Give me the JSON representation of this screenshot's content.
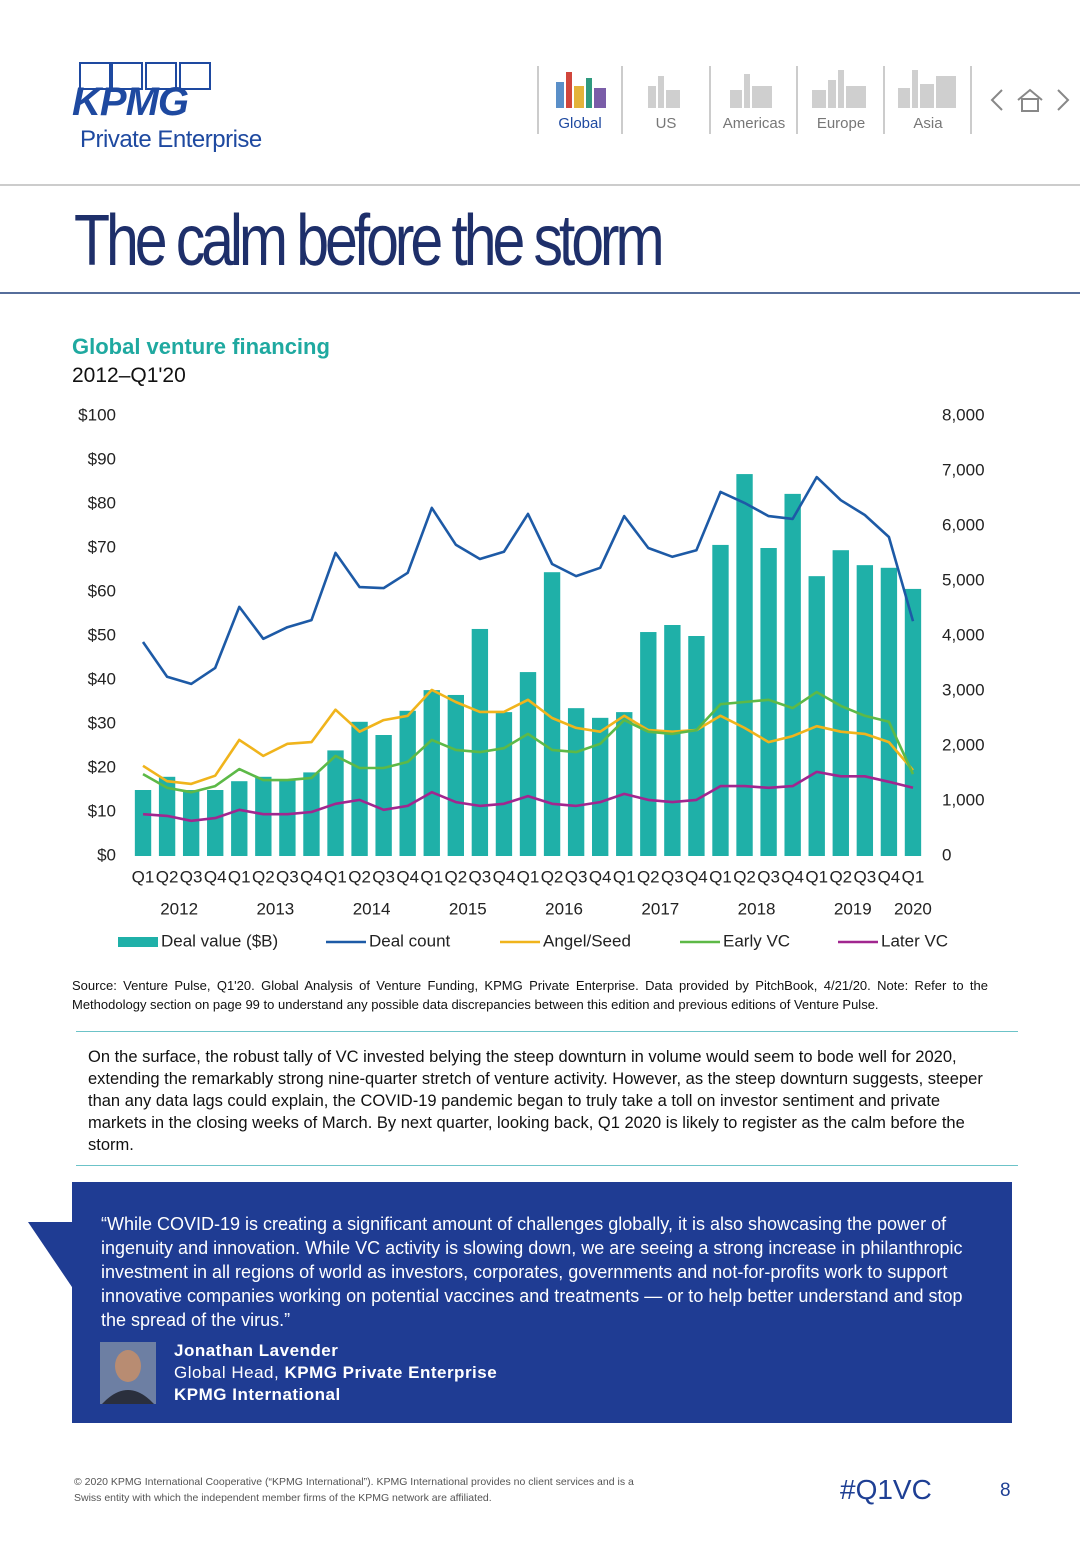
{
  "header": {
    "logo": "KPMG",
    "subtitle": "Private Enterprise",
    "nav": [
      "Global",
      "US",
      "Americas",
      "Europe",
      "Asia"
    ]
  },
  "page_title": "The calm before the storm",
  "chart_data": {
    "type": "bar",
    "title": "Global venture financing",
    "subtitle": "2012–Q1'20",
    "categories": [
      "Q1",
      "Q2",
      "Q3",
      "Q4",
      "Q1",
      "Q2",
      "Q3",
      "Q4",
      "Q1",
      "Q2",
      "Q3",
      "Q4",
      "Q1",
      "Q2",
      "Q3",
      "Q4",
      "Q1",
      "Q2",
      "Q3",
      "Q4",
      "Q1",
      "Q2",
      "Q3",
      "Q4",
      "Q1",
      "Q2",
      "Q3",
      "Q4",
      "Q1",
      "Q2",
      "Q3",
      "Q4",
      "Q1"
    ],
    "year_labels": [
      "2012",
      "2013",
      "2014",
      "2015",
      "2016",
      "2017",
      "2018",
      "2019",
      "2020"
    ],
    "ylim": [
      0,
      100
    ],
    "yticks": [
      {
        "value": 0,
        "label": "$0"
      },
      {
        "value": 10,
        "label": "$10"
      },
      {
        "value": 20,
        "label": "$20"
      },
      {
        "value": 30,
        "label": "$30"
      },
      {
        "value": 40,
        "label": "$40"
      },
      {
        "value": 50,
        "label": "$50"
      },
      {
        "value": 60,
        "label": "$60"
      },
      {
        "value": 70,
        "label": "$70"
      },
      {
        "value": 80,
        "label": "$80"
      },
      {
        "value": 90,
        "label": "$90"
      },
      {
        "value": 100,
        "label": "$100"
      }
    ],
    "y2lim": [
      0,
      8000
    ],
    "y2ticks": [
      0,
      {
        "value": 1000,
        "label": "1,000"
      },
      {
        "value": 2000,
        "label": "2,000"
      },
      {
        "value": 3000,
        "label": "3,000"
      },
      {
        "value": 4000,
        "label": "4,000"
      },
      {
        "value": 5000,
        "label": "5,000"
      },
      {
        "value": 6000,
        "label": "6,000"
      },
      {
        "value": 7000,
        "label": "7,000"
      },
      {
        "value": 8000,
        "label": "8,000"
      }
    ],
    "grid": false,
    "series": [
      {
        "name": "Deal value ($B)",
        "type": "bar",
        "axis": "y",
        "color": "#1fb0a8",
        "values": [
          15,
          18,
          15,
          15,
          17,
          18,
          17.5,
          19,
          24,
          30.5,
          27.5,
          33,
          37.7,
          36.6,
          51.6,
          32.7,
          41.8,
          64.5,
          33.6,
          31.4,
          32.7,
          50.9,
          52.5,
          50,
          70.7,
          86.8,
          70,
          82.3,
          63.6,
          69.5,
          66.1,
          65.5,
          60.7
        ]
      },
      {
        "name": "Deal count",
        "type": "line",
        "axis": "y2",
        "color": "#1d5aa6",
        "values": [
          3890,
          3260,
          3130,
          3420,
          4530,
          3950,
          4160,
          4290,
          5510,
          4890,
          4870,
          5150,
          6330,
          5660,
          5400,
          5530,
          6220,
          5310,
          5090,
          5240,
          6180,
          5600,
          5440,
          5560,
          6620,
          6420,
          6180,
          6130,
          6890,
          6470,
          6200,
          5800,
          4270
        ]
      },
      {
        "name": "Angel/Seed",
        "type": "line",
        "axis": "y2",
        "color": "#f0b41c",
        "values": [
          1640,
          1360,
          1310,
          1460,
          2110,
          1820,
          2040,
          2070,
          2660,
          2260,
          2470,
          2550,
          3020,
          2800,
          2620,
          2620,
          2840,
          2510,
          2330,
          2260,
          2550,
          2290,
          2260,
          2290,
          2550,
          2330,
          2070,
          2180,
          2360,
          2260,
          2220,
          2070,
          1560
        ]
      },
      {
        "name": "Early VC",
        "type": "line",
        "axis": "y2",
        "color": "#5db947",
        "values": [
          1490,
          1240,
          1160,
          1270,
          1580,
          1380,
          1380,
          1420,
          1820,
          1600,
          1600,
          1710,
          2110,
          1930,
          1890,
          1960,
          2220,
          1930,
          1890,
          2040,
          2470,
          2260,
          2220,
          2290,
          2760,
          2800,
          2840,
          2690,
          2980,
          2730,
          2550,
          2440,
          1490
        ]
      },
      {
        "name": "Later VC",
        "type": "line",
        "axis": "y2",
        "color": "#a1268f",
        "values": [
          760,
          730,
          640,
          690,
          840,
          760,
          760,
          800,
          950,
          1020,
          840,
          910,
          1160,
          980,
          910,
          950,
          1090,
          950,
          910,
          980,
          1130,
          1020,
          980,
          1020,
          1270,
          1270,
          1240,
          1270,
          1530,
          1450,
          1450,
          1350,
          1240
        ]
      }
    ],
    "source": "Source: Venture Pulse, Q1'20. Global Analysis of Venture Funding, KPMG Private Enterprise. Data provided by PitchBook, 4/21/20. Note: Refer to the Methodology section on page 99 to understand any possible data discrepancies between this edition and previous editions of Venture Pulse."
  },
  "body": "On the surface, the robust tally of VC invested belying the steep downturn in volume would seem to bode well for 2020, extending the remarkably strong nine-quarter stretch of venture activity. However, as the steep downturn suggests, steeper than any data lags could explain, the COVID-19 pandemic began to truly take a toll on investor sentiment and private markets in the closing weeks of March. By next quarter, looking back, Q1 2020 is likely to register as the calm before the storm.",
  "quote": {
    "text": "“While COVID-19 is creating a significant amount of challenges globally, it is also showcasing the power of ingenuity and innovation. While VC activity is slowing down, we are seeing a strong increase in philanthropic investment in all regions of world as investors, corporates, governments and not-for-profits work to support innovative companies working on potential vaccines and treatments — or to help better understand and stop the spread of the virus.”",
    "name": "Jonathan Lavender",
    "role": "Global Head, ",
    "role_org": "KPMG Private Enterprise",
    "org": "KPMG International"
  },
  "footer": {
    "copyright": "© 2020 KPMG International Cooperative (“KPMG International”). KPMG International provides no client services and is a Swiss entity with which the independent member firms of the KPMG network are affiliated.",
    "hashtag": "#Q1VC",
    "page_number": "8"
  }
}
